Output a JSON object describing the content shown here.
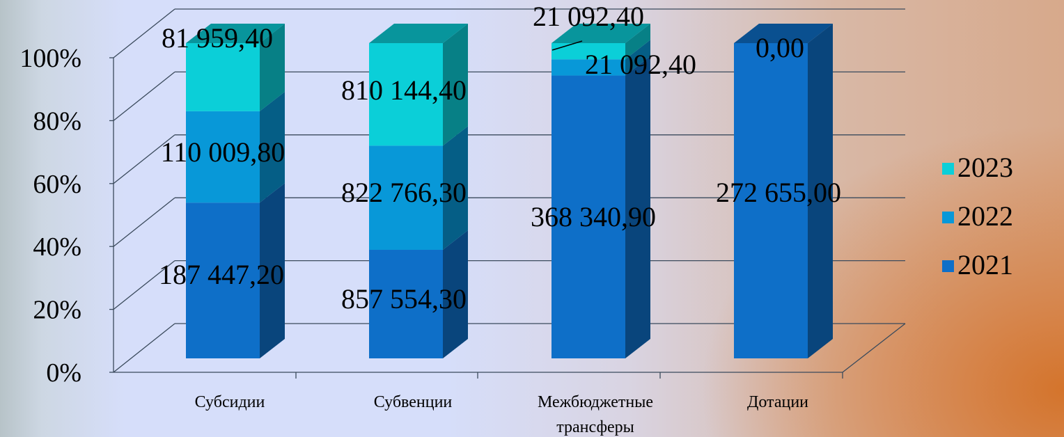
{
  "chart_data": {
    "type": "bar",
    "stacked": "percent",
    "style": "3d",
    "categories": [
      "Субсидии",
      "Субвенции",
      "Межбюджетные трансферы",
      "Дотации"
    ],
    "category_lines": [
      [
        "Субсидии"
      ],
      [
        "Субвенции"
      ],
      [
        "Межбюджетные",
        "трансферы"
      ],
      [
        "Дотации"
      ]
    ],
    "series": [
      {
        "name": "2021",
        "color": "#0e6fc8",
        "values": [
          187447.2,
          857554.3,
          368340.9,
          272655.0
        ],
        "labels": [
          "187 447,20",
          "857 554,30",
          "368 340,90",
          "272 655,00"
        ]
      },
      {
        "name": "2022",
        "color": "#0898d8",
        "values": [
          110009.8,
          822766.3,
          21092.4,
          0
        ],
        "labels": [
          "110 009,80",
          "822 766,30",
          "21 092,40",
          ""
        ]
      },
      {
        "name": "2023",
        "color": "#0bcfd8",
        "values": [
          81959.4,
          810144.4,
          21092.4,
          0
        ],
        "labels": [
          "81 959,40",
          "810 144,40",
          "21 092,40",
          "0,00"
        ]
      }
    ],
    "y_ticks": [
      "0%",
      "20%",
      "40%",
      "60%",
      "80%",
      "100%"
    ],
    "ylim": [
      0,
      100
    ],
    "grid": true,
    "legend_position": "right",
    "legend_order": [
      "2023",
      "2022",
      "2021"
    ]
  }
}
